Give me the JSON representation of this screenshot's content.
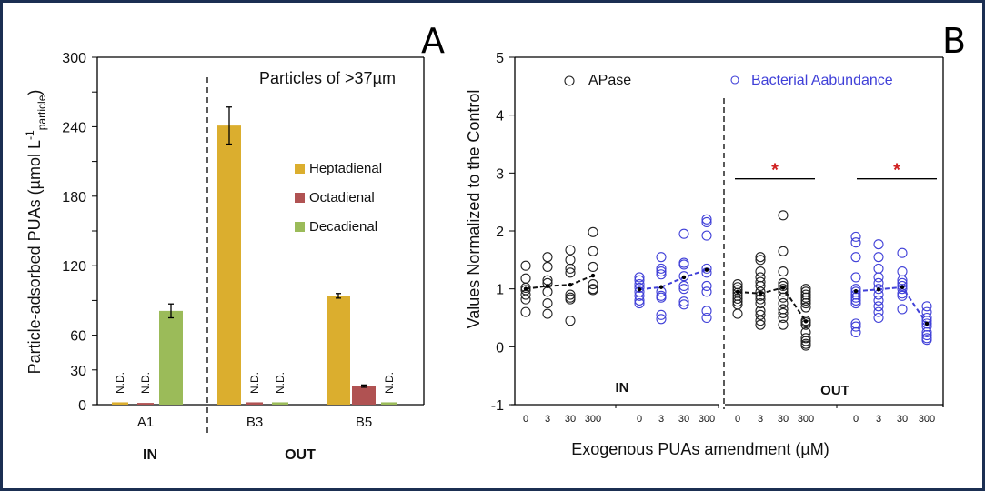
{
  "chart_data": [
    {
      "panel_label": "A",
      "type": "bar",
      "title": "Particles of >37µm",
      "ylabel": "Particle-adsorbed PUAs (µmol L",
      "ylabel_sup": "-1",
      "ylabel_sub": "particle",
      "ylabel_close": ")",
      "ylim": [
        0,
        300
      ],
      "yticks": [
        0,
        30,
        60,
        120,
        180,
        240,
        300
      ],
      "yminor": [
        90,
        150,
        210,
        270
      ],
      "categories": [
        "A1",
        "B3",
        "B5"
      ],
      "groups": [
        {
          "label": "IN",
          "categories": [
            "A1"
          ]
        },
        {
          "label": "OUT",
          "categories": [
            "B3",
            "B5"
          ]
        }
      ],
      "legend_position": "right",
      "series": [
        {
          "name": "Heptadienal",
          "color": "#dbae2e",
          "values": [
            2,
            241,
            94
          ],
          "errors": [
            0,
            16,
            2
          ],
          "nd": [
            true,
            false,
            false
          ]
        },
        {
          "name": "Octadienal",
          "color": "#b05252",
          "values": [
            1.5,
            2,
            16
          ],
          "errors": [
            0,
            0,
            1
          ],
          "nd": [
            true,
            true,
            false
          ]
        },
        {
          "name": "Decadienal",
          "color": "#9bbb59",
          "values": [
            81,
            2,
            2
          ],
          "errors": [
            6,
            0,
            0
          ],
          "nd": [
            false,
            true,
            true
          ]
        }
      ],
      "nd_label": "N.D."
    },
    {
      "panel_label": "B",
      "type": "scatter",
      "ylabel": "Values Normalized to the Control",
      "xlabel": "Exogenous PUAs amendment (µM)",
      "ylim": [
        -1,
        5
      ],
      "yticks": [
        -1,
        0,
        1,
        2,
        3,
        4,
        5
      ],
      "xtick_labels": [
        "0",
        "3",
        "30",
        "300"
      ],
      "groups": [
        {
          "label": "IN"
        },
        {
          "label": "OUT"
        }
      ],
      "legend_position": "top",
      "significance_marker": "*",
      "series": [
        {
          "name": "APase",
          "color": "#222222",
          "groups": [
            {
              "group": "IN",
              "points": [
                [
                  1.4,
                  1.18,
                  1.02,
                  0.98,
                  0.9,
                  0.82,
                  0.6
                ],
                [
                  1.55,
                  1.38,
                  1.15,
                  1.1,
                  0.95,
                  0.75,
                  0.57
                ],
                [
                  1.67,
                  1.5,
                  1.35,
                  1.28,
                  0.9,
                  0.85,
                  0.82,
                  0.45
                ],
                [
                  1.98,
                  1.65,
                  1.38,
                  1.08,
                  1.0,
                  0.98
                ]
              ],
              "means": [
                1.0,
                1.05,
                1.07,
                1.23
              ]
            },
            {
              "group": "OUT",
              "points": [
                [
                  1.08,
                  1.03,
                  0.98,
                  0.93,
                  0.88,
                  0.83,
                  0.78,
                  0.73,
                  0.57
                ],
                [
                  1.55,
                  1.5,
                  1.3,
                  1.2,
                  1.12,
                  1.05,
                  0.95,
                  0.88,
                  0.82,
                  0.75,
                  0.62,
                  0.55,
                  0.45,
                  0.38
                ],
                [
                  2.27,
                  1.65,
                  1.3,
                  1.1,
                  1.05,
                  1.0,
                  0.95,
                  0.85,
                  0.75,
                  0.65,
                  0.58,
                  0.5,
                  0.38
                ],
                [
                  1.0,
                  0.95,
                  0.9,
                  0.85,
                  0.8,
                  0.75,
                  0.68,
                  0.45,
                  0.42,
                  0.38,
                  0.25,
                  0.15,
                  0.1,
                  0.05,
                  0.02
                ]
              ],
              "means": [
                0.95,
                0.92,
                1.02,
                0.44
              ]
            },
            {
              "significant": true
            }
          ]
        },
        {
          "name": "Bacterial Aabundance",
          "color": "#4040d8",
          "groups": [
            {
              "group": "IN",
              "points": [
                [
                  1.2,
                  1.15,
                  1.08,
                  1.02,
                  0.95,
                  0.88,
                  0.8,
                  0.75
                ],
                [
                  1.55,
                  1.35,
                  1.3,
                  1.25,
                  0.95,
                  0.88,
                  0.85,
                  0.55,
                  0.48
                ],
                [
                  1.95,
                  1.45,
                  1.42,
                  1.22,
                  1.05,
                  1.0,
                  0.78,
                  0.73
                ],
                [
                  2.2,
                  2.15,
                  1.92,
                  1.35,
                  1.28,
                  1.05,
                  0.95,
                  0.62,
                  0.5
                ]
              ],
              "means": [
                0.99,
                1.03,
                1.2,
                1.33
              ]
            },
            {
              "group": "OUT",
              "points": [
                [
                  1.9,
                  1.8,
                  1.55,
                  1.2,
                  1.0,
                  0.95,
                  0.9,
                  0.85,
                  0.8,
                  0.75,
                  0.4,
                  0.35,
                  0.25
                ],
                [
                  1.77,
                  1.55,
                  1.35,
                  1.2,
                  1.1,
                  1.0,
                  0.9,
                  0.8,
                  0.7,
                  0.6,
                  0.5
                ],
                [
                  1.62,
                  1.3,
                  1.15,
                  1.1,
                  1.05,
                  1.0,
                  0.92,
                  0.88,
                  0.65
                ],
                [
                  0.7,
                  0.6,
                  0.5,
                  0.45,
                  0.4,
                  0.35,
                  0.25,
                  0.2,
                  0.15,
                  0.12
                ]
              ],
              "means": [
                0.96,
                0.99,
                1.03,
                0.4
              ]
            }
          ]
        }
      ]
    }
  ]
}
